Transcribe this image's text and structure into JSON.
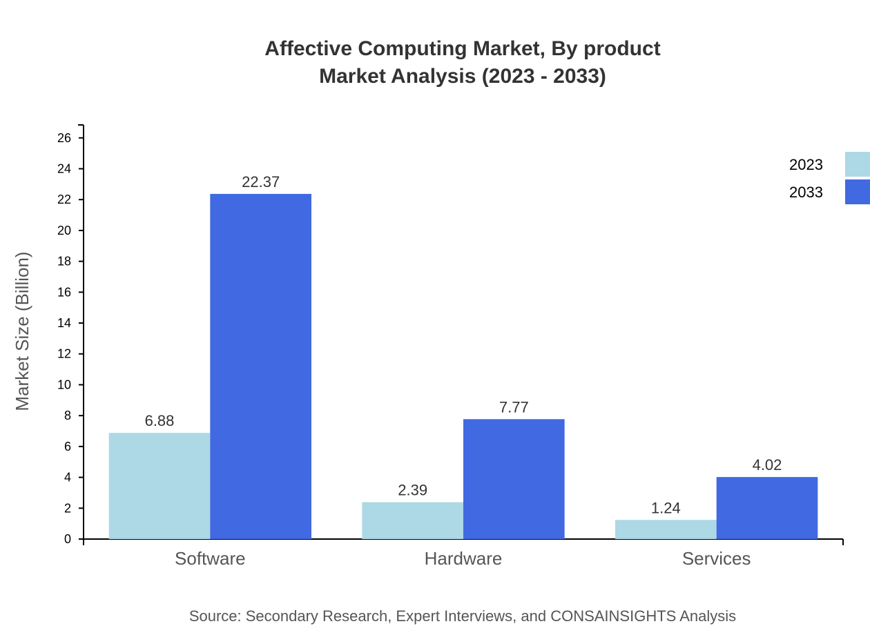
{
  "chart_data": {
    "type": "bar",
    "title": [
      "Affective Computing Market, By product",
      "Market Analysis (2023 - 2033)"
    ],
    "xlabel": "",
    "ylabel": "Market Size (Billion)",
    "categories": [
      "Software",
      "Hardware",
      "Services"
    ],
    "series": [
      {
        "name": "2023",
        "values": [
          6.88,
          2.39,
          1.24
        ],
        "color": "#add8e6"
      },
      {
        "name": "2033",
        "values": [
          22.37,
          7.77,
          4.02
        ],
        "color": "#4169e1"
      }
    ],
    "ylim": [
      0,
      26.84
    ],
    "yticks": [
      0,
      2,
      4,
      6,
      8,
      10,
      12,
      14,
      16,
      18,
      20,
      22,
      24,
      26
    ],
    "grid": false,
    "legend": "top-right",
    "source": "Source: Secondary Research, Expert Interviews, and CONSAINSIGHTS Analysis"
  }
}
